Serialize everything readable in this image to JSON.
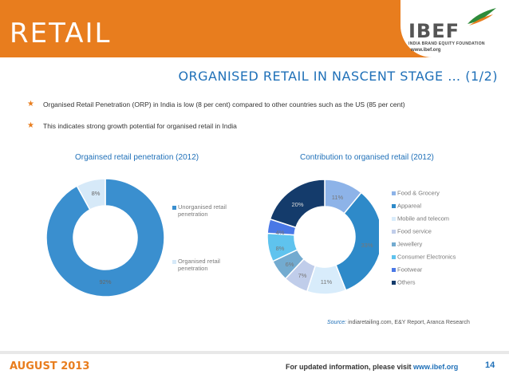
{
  "header": {
    "title": "RETAIL",
    "logo_text": "IBEF",
    "logo_subtext": "INDIA BRAND EQUITY FOUNDATION",
    "logo_url": "www.ibef.org"
  },
  "subtitle": "ORGANISED RETAIL IN NASCENT STAGE … (1/2)",
  "bullets": [
    "Organised Retail Penetration (ORP) in India is low (8 per cent) compared to other countries such as the US (85 per cent)",
    "This indicates strong growth potential for organised retail in India"
  ],
  "chart_data": [
    {
      "type": "pie",
      "title": "Orgainsed retail penetration (2012)",
      "categories": [
        "Unorganised retail penetration",
        "Organised retail penetration"
      ],
      "values": [
        92,
        8
      ],
      "labels": [
        "92%",
        "8%"
      ],
      "colors": [
        "#3a8fcf",
        "#d6e9f8"
      ],
      "legend_position": "right"
    },
    {
      "type": "pie",
      "title": "Contribution to organised retail (2012)",
      "categories": [
        "Food & Grocery",
        "Appareal",
        "Mobile and telecom",
        "Food service",
        "Jewellery",
        "Consumer Electronics",
        "Footwear",
        "Others"
      ],
      "values": [
        11,
        33,
        11,
        7,
        6,
        8,
        4,
        20
      ],
      "labels": [
        "11%",
        "33%",
        "11%",
        "7%",
        "6%",
        "8%",
        "4%",
        "20%"
      ],
      "colors": [
        "#8db3e8",
        "#2e8ac9",
        "#d8ecfb",
        "#c0cdea",
        "#73abd0",
        "#5fc3ee",
        "#4a78e6",
        "#143b6b"
      ],
      "legend_position": "right"
    }
  ],
  "source": {
    "label": "Source:",
    "text": " indiaretailing.com, E&Y Report, Aranca Research"
  },
  "footer": {
    "date": "AUGUST 2013",
    "info_text": "For updated information, please visit ",
    "info_link": "www.ibef.org",
    "page": "14"
  }
}
